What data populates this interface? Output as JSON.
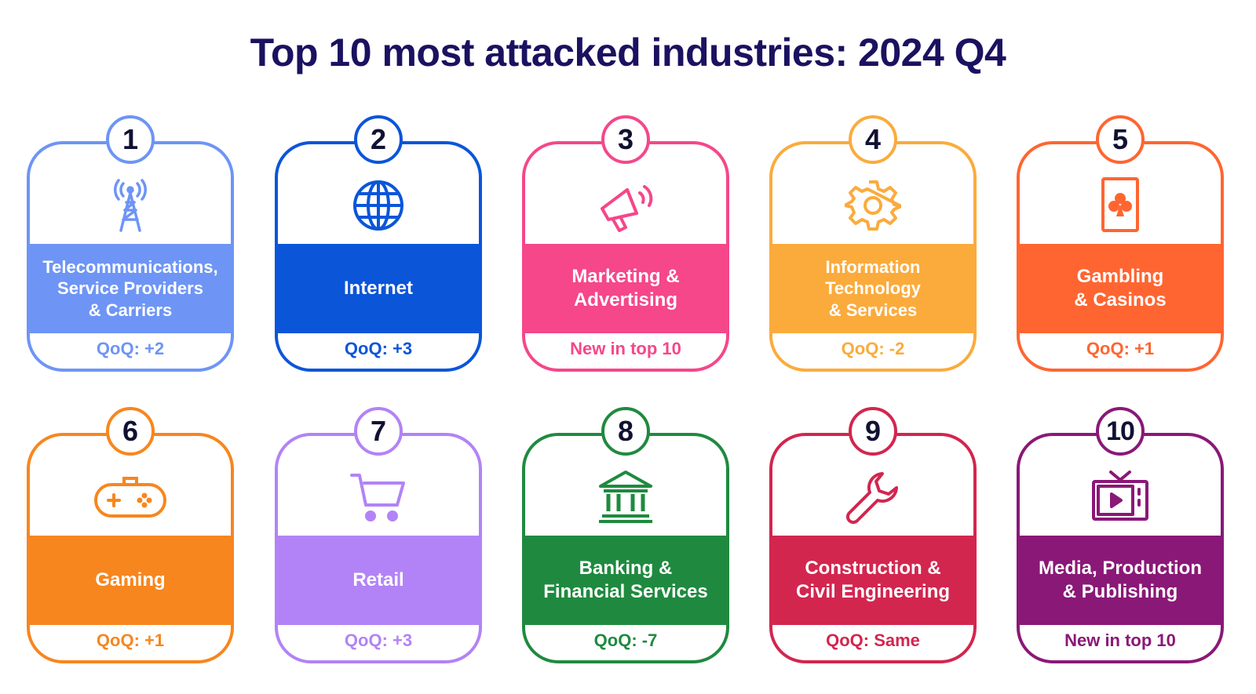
{
  "title": "Top 10 most attacked industries: 2024 Q4",
  "industries": [
    {
      "rank": "1",
      "name": "Telecommunications,\nService Providers\n& Carriers",
      "qoq": "QoQ: +2",
      "color": "#6e95f5",
      "icon": "antenna-tower-icon"
    },
    {
      "rank": "2",
      "name": "Internet",
      "qoq": "QoQ: +3",
      "color": "#0b55d9",
      "icon": "globe-icon"
    },
    {
      "rank": "3",
      "name": "Marketing &\nAdvertising",
      "qoq": "New in top 10",
      "color": "#f5478a",
      "icon": "megaphone-icon"
    },
    {
      "rank": "4",
      "name": "Information\nTechnology\n& Services",
      "qoq": "QoQ: -2",
      "color": "#fbab3c",
      "icon": "gear-icon"
    },
    {
      "rank": "5",
      "name": "Gambling\n& Casinos",
      "qoq": "QoQ: +1",
      "color": "#ff6531",
      "icon": "playing-card-icon"
    },
    {
      "rank": "6",
      "name": "Gaming",
      "qoq": "QoQ: +1",
      "color": "#f7861f",
      "icon": "gamepad-icon"
    },
    {
      "rank": "7",
      "name": "Retail",
      "qoq": "QoQ: +3",
      "color": "#b283f6",
      "icon": "shopping-cart-icon"
    },
    {
      "rank": "8",
      "name": "Banking &\nFinancial Services",
      "qoq": "QoQ: -7",
      "color": "#1f8a3f",
      "icon": "bank-icon"
    },
    {
      "rank": "9",
      "name": "Construction &\nCivil Engineering",
      "qoq": "QoQ: Same",
      "color": "#d2264f",
      "icon": "wrench-icon"
    },
    {
      "rank": "10",
      "name": "Media, Production\n& Publishing",
      "qoq": "New in top 10",
      "color": "#8a1877",
      "icon": "tv-icon"
    }
  ]
}
